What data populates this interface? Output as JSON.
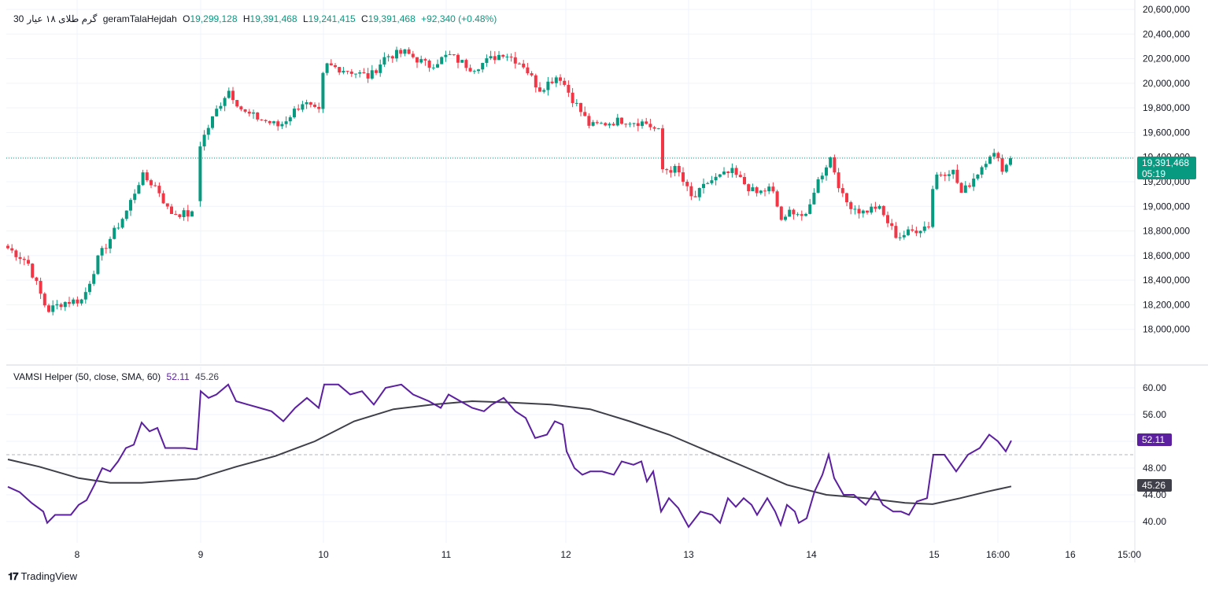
{
  "header": {
    "interval": "30",
    "symbol": "گرم طلای ۱۸ عیار",
    "source": "geramTalaHejdah",
    "open_label": "O",
    "open": "19,299,128",
    "high_label": "H",
    "high": "19,391,468",
    "low_label": "L",
    "low": "19,241,415",
    "close_label": "C",
    "close": "19,391,468",
    "change": "+92,340 (+0.48%)"
  },
  "indicator": {
    "title": "VAMSI Helper (50, close, SMA, 60)",
    "value1": "52.11",
    "value2": "45.26"
  },
  "price_badge": {
    "price": "19,391,468",
    "countdown": "05:19"
  },
  "indicator_badges": {
    "purple": "52.11",
    "gray": "45.26"
  },
  "branding": {
    "text": "TradingView"
  },
  "colors": {
    "up": "#089981",
    "down": "#f23645",
    "purple": "#5b1fa0",
    "gray": "#3f3f4a"
  },
  "chart_data": [
    {
      "type": "candlestick",
      "title": "گرم طلای ۱۸ عیار 30",
      "y_axis_ticks": [
        "20,600,000",
        "20,400,000",
        "20,200,000",
        "20,000,000",
        "19,800,000",
        "19,600,000",
        "19,400,000",
        "19,200,000",
        "19,000,000",
        "18,800,000",
        "18,600,000",
        "18,400,000",
        "18,200,000",
        "18,000,000"
      ],
      "ylim": [
        17800000,
        20600000
      ],
      "x_axis_labels": [
        "8",
        "9",
        "10",
        "11",
        "12",
        "13",
        "14",
        "15",
        "16:00",
        "16",
        "15:00"
      ],
      "last_price": 19391468,
      "anchors": [
        {
          "x": 10,
          "price": 18660000
        },
        {
          "x": 35,
          "price": 18550000
        },
        {
          "x": 60,
          "price": 18150000
        },
        {
          "x": 80,
          "price": 18220000
        },
        {
          "x": 105,
          "price": 18240000
        },
        {
          "x": 125,
          "price": 18580000
        },
        {
          "x": 160,
          "price": 18950000
        },
        {
          "x": 180,
          "price": 19250000
        },
        {
          "x": 200,
          "price": 19150000
        },
        {
          "x": 215,
          "price": 18950000
        },
        {
          "x": 248,
          "price": 18930000
        },
        {
          "x": 254,
          "price": 19500000
        },
        {
          "x": 275,
          "price": 19780000
        },
        {
          "x": 290,
          "price": 19950000
        },
        {
          "x": 310,
          "price": 19760000
        },
        {
          "x": 355,
          "price": 19650000
        },
        {
          "x": 385,
          "price": 19850000
        },
        {
          "x": 405,
          "price": 19750000
        },
        {
          "x": 412,
          "price": 20150000
        },
        {
          "x": 445,
          "price": 20100000
        },
        {
          "x": 470,
          "price": 20050000
        },
        {
          "x": 490,
          "price": 20220000
        },
        {
          "x": 515,
          "price": 20250000
        },
        {
          "x": 545,
          "price": 20140000
        },
        {
          "x": 570,
          "price": 20230000
        },
        {
          "x": 600,
          "price": 20120000
        },
        {
          "x": 640,
          "price": 20250000
        },
        {
          "x": 665,
          "price": 20150000
        },
        {
          "x": 685,
          "price": 19950000
        },
        {
          "x": 710,
          "price": 20070000
        },
        {
          "x": 725,
          "price": 19900000
        },
        {
          "x": 750,
          "price": 19650000
        },
        {
          "x": 790,
          "price": 19700000
        },
        {
          "x": 820,
          "price": 19680000
        },
        {
          "x": 838,
          "price": 19600000
        },
        {
          "x": 842,
          "price": 19300000
        },
        {
          "x": 860,
          "price": 19300000
        },
        {
          "x": 880,
          "price": 19050000
        },
        {
          "x": 900,
          "price": 19200000
        },
        {
          "x": 930,
          "price": 19280000
        },
        {
          "x": 960,
          "price": 19100000
        },
        {
          "x": 980,
          "price": 19150000
        },
        {
          "x": 995,
          "price": 18850000
        },
        {
          "x": 1005,
          "price": 18980000
        },
        {
          "x": 1025,
          "price": 18900000
        },
        {
          "x": 1035,
          "price": 19150000
        },
        {
          "x": 1055,
          "price": 19400000
        },
        {
          "x": 1072,
          "price": 19050000
        },
        {
          "x": 1095,
          "price": 18950000
        },
        {
          "x": 1115,
          "price": 19000000
        },
        {
          "x": 1140,
          "price": 18750000
        },
        {
          "x": 1160,
          "price": 18800000
        },
        {
          "x": 1180,
          "price": 18850000
        },
        {
          "x": 1187,
          "price": 19250000
        },
        {
          "x": 1210,
          "price": 19300000
        },
        {
          "x": 1222,
          "price": 19100000
        },
        {
          "x": 1245,
          "price": 19300000
        },
        {
          "x": 1260,
          "price": 19450000
        },
        {
          "x": 1275,
          "price": 19300000
        },
        {
          "x": 1285,
          "price": 19391468
        }
      ]
    },
    {
      "type": "line",
      "title": "VAMSI Helper (50, close, SMA, 60)",
      "y_axis_ticks": [
        "60.00",
        "56.00",
        "52.00",
        "48.00",
        "44.00",
        "40.00"
      ],
      "ylim": [
        38,
        62
      ],
      "dashed_level": 50,
      "series": [
        {
          "name": "VAMSI (purple)",
          "points": [
            {
              "x": 10,
              "value": 45.2
            },
            {
              "x": 25,
              "value": 44.4
            },
            {
              "x": 40,
              "value": 42.8
            },
            {
              "x": 55,
              "value": 41.5
            },
            {
              "x": 60,
              "value": 39.8
            },
            {
              "x": 70,
              "value": 41.0
            },
            {
              "x": 80,
              "value": 41.0
            },
            {
              "x": 90,
              "value": 41.0
            },
            {
              "x": 100,
              "value": 42.5
            },
            {
              "x": 110,
              "value": 43.2
            },
            {
              "x": 120,
              "value": 45.5
            },
            {
              "x": 130,
              "value": 48.0
            },
            {
              "x": 140,
              "value": 47.5
            },
            {
              "x": 150,
              "value": 49.0
            },
            {
              "x": 160,
              "value": 51.0
            },
            {
              "x": 170,
              "value": 51.5
            },
            {
              "x": 180,
              "value": 54.8
            },
            {
              "x": 190,
              "value": 53.5
            },
            {
              "x": 200,
              "value": 54.0
            },
            {
              "x": 210,
              "value": 51.0
            },
            {
              "x": 220,
              "value": 51.0
            },
            {
              "x": 235,
              "value": 51.0
            },
            {
              "x": 250,
              "value": 50.8
            },
            {
              "x": 255,
              "value": 59.5
            },
            {
              "x": 265,
              "value": 58.5
            },
            {
              "x": 275,
              "value": 59.0
            },
            {
              "x": 290,
              "value": 60.5
            },
            {
              "x": 300,
              "value": 58.0
            },
            {
              "x": 315,
              "value": 57.5
            },
            {
              "x": 330,
              "value": 57.0
            },
            {
              "x": 345,
              "value": 56.5
            },
            {
              "x": 360,
              "value": 55.0
            },
            {
              "x": 375,
              "value": 57.0
            },
            {
              "x": 390,
              "value": 58.5
            },
            {
              "x": 405,
              "value": 57.0
            },
            {
              "x": 412,
              "value": 60.5
            },
            {
              "x": 430,
              "value": 60.5
            },
            {
              "x": 445,
              "value": 59.0
            },
            {
              "x": 460,
              "value": 59.5
            },
            {
              "x": 475,
              "value": 57.5
            },
            {
              "x": 490,
              "value": 60.0
            },
            {
              "x": 510,
              "value": 60.5
            },
            {
              "x": 525,
              "value": 59.0
            },
            {
              "x": 545,
              "value": 58.0
            },
            {
              "x": 560,
              "value": 57.0
            },
            {
              "x": 570,
              "value": 59.0
            },
            {
              "x": 585,
              "value": 58.0
            },
            {
              "x": 600,
              "value": 57.0
            },
            {
              "x": 615,
              "value": 56.5
            },
            {
              "x": 625,
              "value": 57.5
            },
            {
              "x": 640,
              "value": 58.5
            },
            {
              "x": 655,
              "value": 56.5
            },
            {
              "x": 668,
              "value": 55.5
            },
            {
              "x": 680,
              "value": 52.5
            },
            {
              "x": 695,
              "value": 53.0
            },
            {
              "x": 705,
              "value": 55.0
            },
            {
              "x": 715,
              "value": 54.5
            },
            {
              "x": 720,
              "value": 50.5
            },
            {
              "x": 730,
              "value": 48.0
            },
            {
              "x": 740,
              "value": 47.0
            },
            {
              "x": 750,
              "value": 47.5
            },
            {
              "x": 765,
              "value": 47.5
            },
            {
              "x": 780,
              "value": 47.0
            },
            {
              "x": 790,
              "value": 49.0
            },
            {
              "x": 805,
              "value": 48.5
            },
            {
              "x": 815,
              "value": 49.0
            },
            {
              "x": 822,
              "value": 46.0
            },
            {
              "x": 830,
              "value": 47.5
            },
            {
              "x": 840,
              "value": 41.5
            },
            {
              "x": 850,
              "value": 43.5
            },
            {
              "x": 862,
              "value": 42.0
            },
            {
              "x": 875,
              "value": 39.2
            },
            {
              "x": 890,
              "value": 41.5
            },
            {
              "x": 905,
              "value": 41.0
            },
            {
              "x": 915,
              "value": 39.8
            },
            {
              "x": 925,
              "value": 43.5
            },
            {
              "x": 935,
              "value": 42.2
            },
            {
              "x": 945,
              "value": 43.5
            },
            {
              "x": 955,
              "value": 42.5
            },
            {
              "x": 962,
              "value": 41.0
            },
            {
              "x": 975,
              "value": 43.5
            },
            {
              "x": 985,
              "value": 41.5
            },
            {
              "x": 992,
              "value": 39.5
            },
            {
              "x": 1000,
              "value": 42.5
            },
            {
              "x": 1010,
              "value": 41.5
            },
            {
              "x": 1015,
              "value": 39.8
            },
            {
              "x": 1025,
              "value": 40.5
            },
            {
              "x": 1035,
              "value": 44.5
            },
            {
              "x": 1045,
              "value": 47.0
            },
            {
              "x": 1053,
              "value": 50.0
            },
            {
              "x": 1060,
              "value": 46.5
            },
            {
              "x": 1072,
              "value": 44.0
            },
            {
              "x": 1085,
              "value": 44.0
            },
            {
              "x": 1100,
              "value": 42.5
            },
            {
              "x": 1112,
              "value": 44.5
            },
            {
              "x": 1122,
              "value": 42.5
            },
            {
              "x": 1135,
              "value": 41.5
            },
            {
              "x": 1145,
              "value": 41.5
            },
            {
              "x": 1155,
              "value": 41.0
            },
            {
              "x": 1165,
              "value": 43.0
            },
            {
              "x": 1178,
              "value": 43.5
            },
            {
              "x": 1186,
              "value": 50.0
            },
            {
              "x": 1200,
              "value": 50.0
            },
            {
              "x": 1215,
              "value": 47.5
            },
            {
              "x": 1230,
              "value": 50.0
            },
            {
              "x": 1245,
              "value": 51.0
            },
            {
              "x": 1257,
              "value": 53.0
            },
            {
              "x": 1268,
              "value": 52.0
            },
            {
              "x": 1278,
              "value": 50.5
            },
            {
              "x": 1285,
              "value": 52.11
            }
          ]
        },
        {
          "name": "SMA (gray)",
          "points": [
            {
              "x": 10,
              "value": 49.3
            },
            {
              "x": 50,
              "value": 48.2
            },
            {
              "x": 100,
              "value": 46.5
            },
            {
              "x": 140,
              "value": 45.8
            },
            {
              "x": 180,
              "value": 45.8
            },
            {
              "x": 250,
              "value": 46.4
            },
            {
              "x": 300,
              "value": 48.2
            },
            {
              "x": 350,
              "value": 49.8
            },
            {
              "x": 400,
              "value": 52.0
            },
            {
              "x": 450,
              "value": 55.0
            },
            {
              "x": 500,
              "value": 56.8
            },
            {
              "x": 550,
              "value": 57.5
            },
            {
              "x": 600,
              "value": 58.0
            },
            {
              "x": 650,
              "value": 57.8
            },
            {
              "x": 700,
              "value": 57.5
            },
            {
              "x": 750,
              "value": 56.8
            },
            {
              "x": 800,
              "value": 55.0
            },
            {
              "x": 850,
              "value": 53.0
            },
            {
              "x": 900,
              "value": 50.5
            },
            {
              "x": 950,
              "value": 48.0
            },
            {
              "x": 1000,
              "value": 45.5
            },
            {
              "x": 1050,
              "value": 44.0
            },
            {
              "x": 1100,
              "value": 43.5
            },
            {
              "x": 1150,
              "value": 42.8
            },
            {
              "x": 1185,
              "value": 42.6
            },
            {
              "x": 1220,
              "value": 43.5
            },
            {
              "x": 1255,
              "value": 44.5
            },
            {
              "x": 1285,
              "value": 45.26
            }
          ]
        }
      ]
    }
  ]
}
